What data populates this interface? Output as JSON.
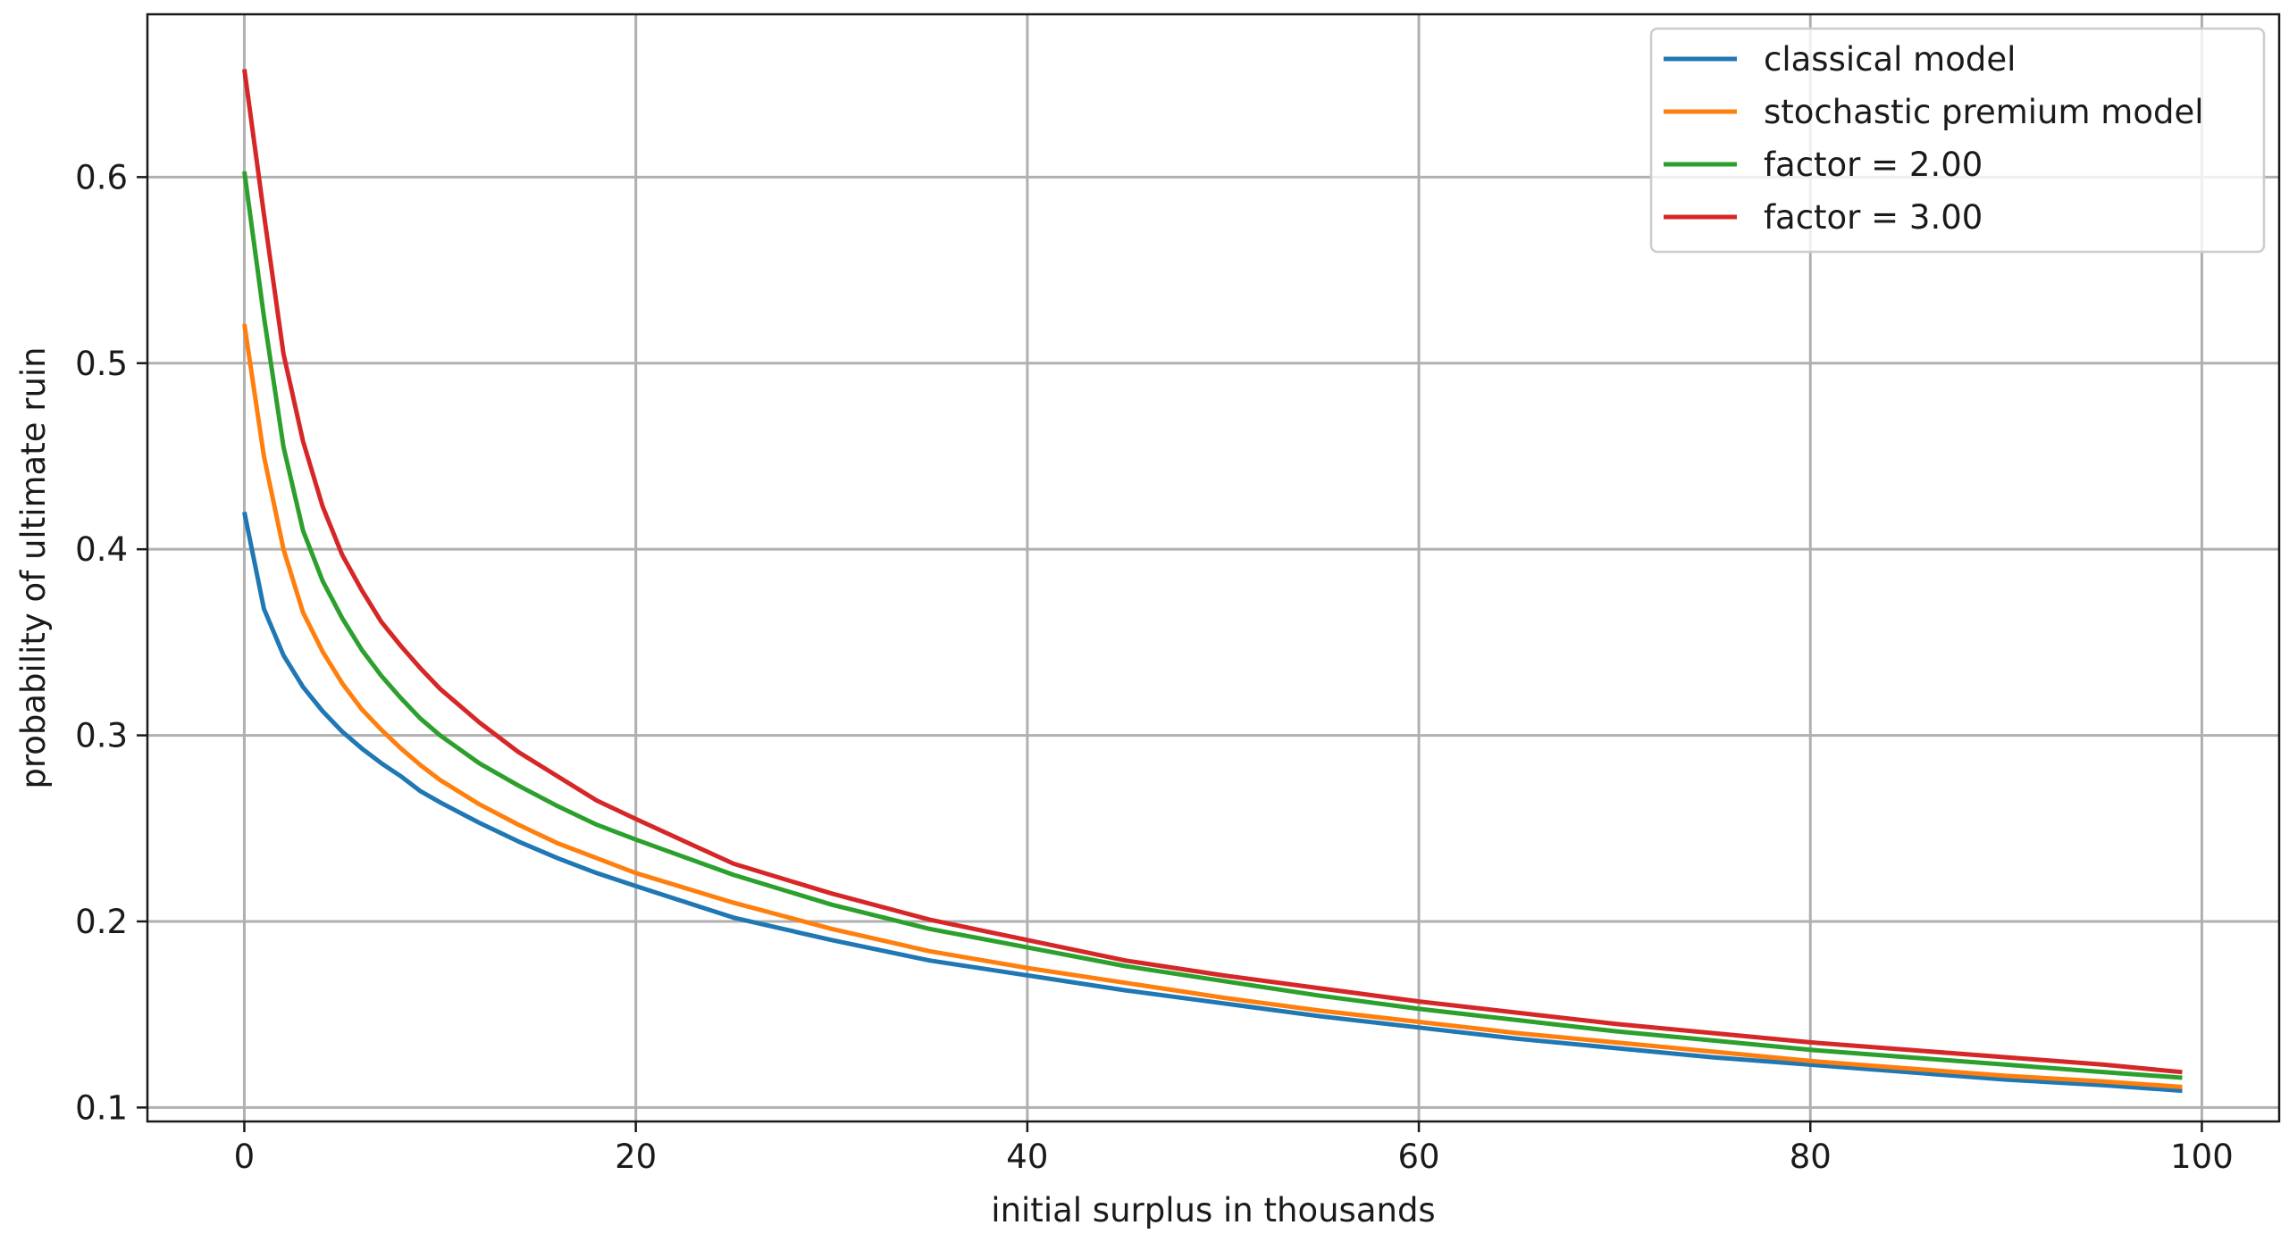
{
  "chart_data": {
    "type": "line",
    "title": "",
    "xlabel": "initial surplus in thousands",
    "ylabel": "probability of ultimate ruin",
    "xlim": [
      -4.95,
      103.95
    ],
    "ylim": [
      0.0925,
      0.6875
    ],
    "xticks": [
      0,
      20,
      40,
      60,
      80,
      100
    ],
    "yticks": [
      0.1,
      0.2,
      0.3,
      0.4,
      0.5,
      0.6
    ],
    "xtick_labels": [
      "0",
      "20",
      "40",
      "60",
      "80",
      "100"
    ],
    "ytick_labels": [
      "0.1",
      "0.2",
      "0.3",
      "0.4",
      "0.5",
      "0.6"
    ],
    "grid": true,
    "legend_position": "top-right",
    "x_anchor": [
      0,
      1,
      2,
      3,
      4,
      5,
      6,
      7,
      8,
      9,
      10,
      12,
      14,
      16,
      18,
      20,
      25,
      30,
      35,
      40,
      45,
      50,
      55,
      60,
      65,
      70,
      75,
      80,
      85,
      90,
      95,
      99
    ],
    "series": [
      {
        "name": "classical model",
        "color": "#1f77b4",
        "values": [
          0.42,
          0.368,
          0.343,
          0.326,
          0.313,
          0.302,
          0.293,
          0.285,
          0.278,
          0.27,
          0.264,
          0.253,
          0.243,
          0.234,
          0.226,
          0.219,
          0.202,
          0.19,
          0.179,
          0.171,
          0.163,
          0.156,
          0.149,
          0.143,
          0.137,
          0.132,
          0.127,
          0.123,
          0.119,
          0.115,
          0.112,
          0.109
        ]
      },
      {
        "name": "stochastic premium model",
        "color": "#ff7f0e",
        "values": [
          0.521,
          0.45,
          0.4,
          0.366,
          0.345,
          0.328,
          0.314,
          0.303,
          0.293,
          0.284,
          0.276,
          0.263,
          0.252,
          0.242,
          0.234,
          0.226,
          0.21,
          0.196,
          0.184,
          0.175,
          0.167,
          0.159,
          0.152,
          0.146,
          0.14,
          0.135,
          0.13,
          0.125,
          0.121,
          0.117,
          0.114,
          0.111
        ]
      },
      {
        "name": "factor = 2.00",
        "color": "#2ca02c",
        "values": [
          0.603,
          0.525,
          0.455,
          0.41,
          0.383,
          0.363,
          0.346,
          0.332,
          0.32,
          0.309,
          0.3,
          0.285,
          0.273,
          0.262,
          0.252,
          0.244,
          0.225,
          0.209,
          0.196,
          0.186,
          0.176,
          0.168,
          0.16,
          0.153,
          0.147,
          0.141,
          0.136,
          0.131,
          0.127,
          0.123,
          0.119,
          0.116
        ]
      },
      {
        "name": "factor = 3.00",
        "color": "#d62728",
        "values": [
          0.658,
          0.58,
          0.505,
          0.458,
          0.423,
          0.397,
          0.378,
          0.361,
          0.348,
          0.336,
          0.325,
          0.307,
          0.291,
          0.278,
          0.265,
          0.255,
          0.231,
          0.215,
          0.201,
          0.19,
          0.179,
          0.171,
          0.164,
          0.157,
          0.151,
          0.145,
          0.14,
          0.135,
          0.131,
          0.127,
          0.123,
          0.119
        ]
      }
    ]
  }
}
